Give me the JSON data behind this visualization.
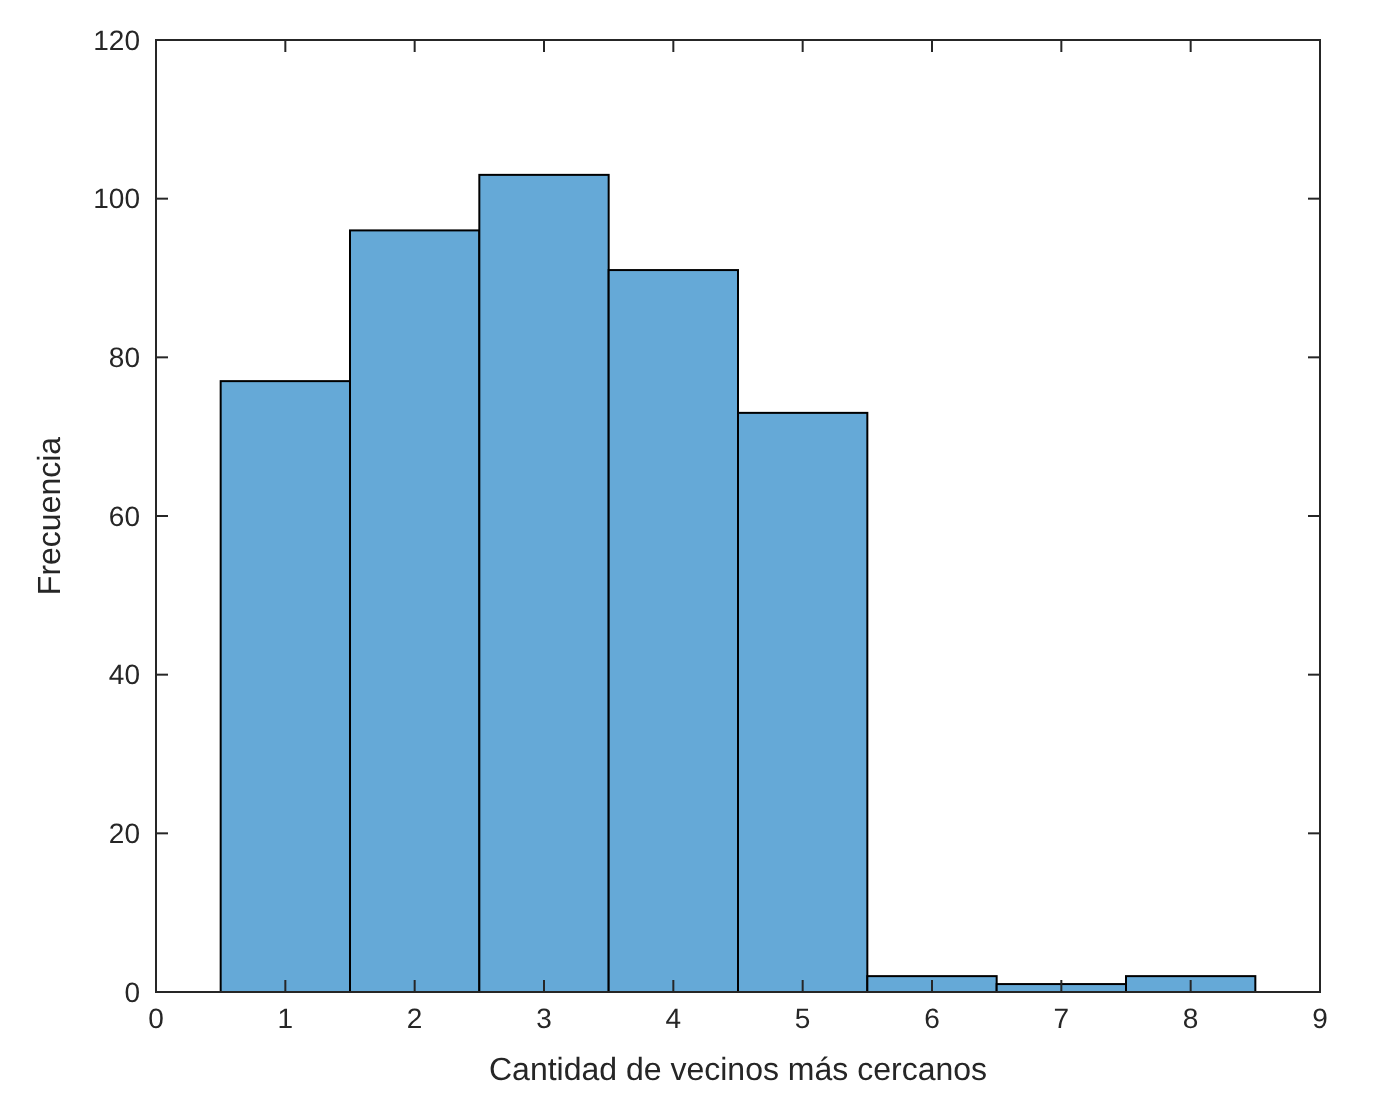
{
  "chart_data": {
    "type": "histogram",
    "xlabel": "Cantidad de vecinos más cercanos",
    "ylabel": "Frecuencia",
    "bins": [
      0.5,
      1.5,
      2.5,
      3.5,
      4.5,
      5.5,
      6.5,
      7.5,
      8.5
    ],
    "values": [
      77,
      96,
      103,
      91,
      73,
      2,
      1,
      2
    ],
    "color": "#65a9d7",
    "xlim": [
      0,
      9
    ],
    "xticks": [
      0,
      1,
      2,
      3,
      4,
      5,
      6,
      7,
      8,
      9
    ],
    "ylim": [
      0,
      120
    ],
    "yticks": [
      0,
      20,
      40,
      60,
      80,
      100,
      120
    ],
    "grid": false
  }
}
